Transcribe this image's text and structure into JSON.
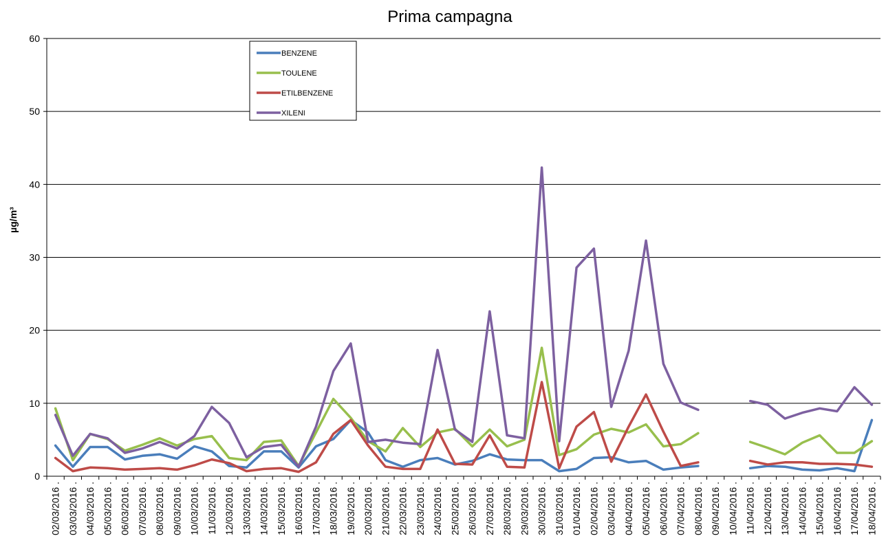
{
  "chart_data": {
    "type": "line",
    "title": "Prima campagna",
    "xlabel": "",
    "ylabel": "µg/m³",
    "ylim": [
      0,
      60
    ],
    "yticks": [
      0,
      10,
      20,
      30,
      40,
      50,
      60
    ],
    "grid": true,
    "legend_position": "top-left",
    "categories": [
      "02/03/2016 .",
      "03/03/2016 .",
      "04/03/2016 .",
      "05/03/2016 .",
      "06/03/2016 .",
      "07/03/2016 .",
      "08/03/2016 .",
      "09/03/2016 .",
      "10/03/2016 .",
      "11/03/2016 .",
      "12/03/2016 .",
      "13/03/2016 .",
      "14/03/2016 .",
      "15/03/2016 .",
      "16/03/2016 .",
      "17/03/2016 .",
      "18/03/2016 .",
      "19/03/2016 .",
      "20/03/2016 .",
      "21/03/2016 .",
      "22/03/2016 .",
      "23/03/2016 .",
      "24/03/2016 .",
      "25/03/2016 .",
      "26/03/2016 .",
      "27/03/2016 .",
      "28/03/2016 .",
      "29/03/2016 .",
      "30/03/2016 .",
      "31/03/2016 .",
      "01/04/2016 .",
      "02/04/2016 .",
      "03/04/2016 .",
      "04/04/2016 .",
      "05/04/2016 .",
      "06/04/2016 .",
      "07/04/2016 .",
      "08/04/2016 .",
      "09/04/2016 .",
      "10/04/2016 .",
      "11/04/2016 .",
      "12/04/2016 .",
      "13/04/2016 .",
      "14/04/2016 .",
      "15/04/2016 .",
      "16/04/2016 .",
      "17/04/2016 .",
      "18/04/2016 ."
    ],
    "series": [
      {
        "name": "BENZENE",
        "color": "#4a7ebb",
        "values": [
          4.2,
          1.3,
          4.0,
          4.0,
          2.3,
          2.8,
          3.0,
          2.4,
          4.1,
          3.4,
          1.4,
          1.2,
          3.4,
          3.4,
          1.2,
          4.1,
          5.1,
          7.7,
          6.0,
          2.2,
          1.3,
          2.2,
          2.5,
          1.6,
          2.1,
          3.0,
          2.3,
          2.2,
          2.2,
          0.7,
          1.0,
          2.5,
          2.6,
          1.9,
          2.1,
          0.9,
          1.2,
          1.4,
          null,
          null,
          1.1,
          1.4,
          1.3,
          0.9,
          0.8,
          1.1,
          0.7,
          7.7
        ]
      },
      {
        "name": "TOULENE",
        "color": "#98bf4d",
        "values": [
          9.3,
          2.2,
          5.8,
          5.1,
          3.5,
          4.3,
          5.2,
          4.2,
          5.1,
          5.5,
          2.5,
          2.2,
          4.7,
          4.9,
          1.4,
          6.0,
          10.6,
          8.0,
          4.8,
          3.4,
          6.6,
          4.0,
          6.0,
          6.5,
          4.1,
          6.4,
          4.1,
          5.0,
          17.6,
          2.9,
          3.7,
          5.7,
          6.5,
          6.0,
          7.1,
          4.1,
          4.4,
          5.9,
          null,
          null,
          4.7,
          3.9,
          3.0,
          4.6,
          5.6,
          3.2,
          3.2,
          4.8
        ]
      },
      {
        "name": "ETILBENZENE",
        "color": "#be4b48",
        "values": [
          2.5,
          0.7,
          1.2,
          1.1,
          0.9,
          1.0,
          1.1,
          0.9,
          1.5,
          2.3,
          1.8,
          0.7,
          1.0,
          1.1,
          0.6,
          1.9,
          5.8,
          7.7,
          4.2,
          1.3,
          1.0,
          1.0,
          6.4,
          1.7,
          1.6,
          5.6,
          1.3,
          1.2,
          12.9,
          1.1,
          6.8,
          8.8,
          2.0,
          6.8,
          11.2,
          6.1,
          1.4,
          1.9,
          null,
          null,
          2.1,
          1.6,
          1.9,
          1.9,
          1.7,
          1.7,
          1.6,
          1.3
        ]
      },
      {
        "name": "XILENI",
        "color": "#7d60a0",
        "values": [
          8.4,
          2.8,
          5.8,
          5.2,
          3.2,
          3.8,
          4.7,
          3.8,
          5.5,
          9.5,
          7.3,
          2.6,
          4.0,
          4.3,
          1.3,
          6.8,
          14.4,
          18.2,
          4.7,
          5.0,
          4.6,
          4.4,
          17.3,
          6.4,
          4.7,
          22.6,
          5.6,
          5.2,
          42.3,
          4.8,
          28.6,
          31.2,
          9.5,
          17.2,
          32.3,
          15.4,
          10.1,
          9.1,
          null,
          null,
          10.3,
          9.8,
          7.9,
          8.7,
          9.3,
          8.9,
          12.2,
          9.8
        ]
      }
    ]
  }
}
